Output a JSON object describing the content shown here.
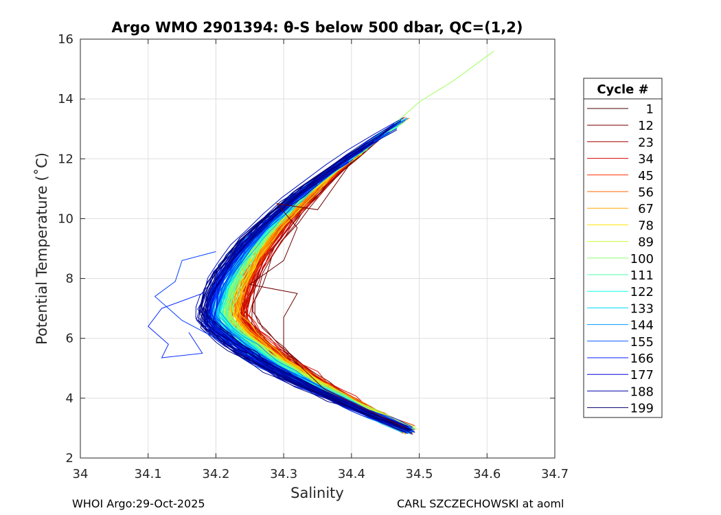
{
  "chart_data": {
    "type": "line",
    "title": "Argo WMO 2901394: θ-S below 500 dbar,  QC=(1,2)",
    "xlabel": "Salinity",
    "ylabel": "Potential Temperature (˚C)",
    "xlim": [
      34.0,
      34.7
    ],
    "ylim": [
      2,
      16
    ],
    "xticks": [
      "34",
      "34.1",
      "34.2",
      "34.3",
      "34.4",
      "34.5",
      "34.6",
      "34.7"
    ],
    "yticks": [
      "2",
      "4",
      "6",
      "8",
      "10",
      "12",
      "14",
      "16"
    ],
    "grid": true,
    "legend": {
      "title": "Cycle #",
      "position": "right-outside",
      "entries": [
        "1",
        "12",
        "23",
        "34",
        "45",
        "56",
        "67",
        "78",
        "89",
        "100",
        "111",
        "122",
        "133",
        "144",
        "155",
        "166",
        "177",
        "188",
        "199"
      ],
      "colors": [
        "#4d0000",
        "#7a0000",
        "#a80000",
        "#d40000",
        "#ff2a00",
        "#ff6a00",
        "#ffa800",
        "#ffe600",
        "#c8ff33",
        "#8cff70",
        "#4dffad",
        "#12ffea",
        "#00d4ff",
        "#0098ff",
        "#005aff",
        "#001eff",
        "#0000e0",
        "#0000a8",
        "#00006e"
      ]
    },
    "series_template": {
      "note": "Each cycle traces a θ-S curve: deep point near S=34.49, θ=2.85; salinity minimum near S≈34.17–34.27 at θ≈6.5–7; upper point near S≈34.45, θ≈13.",
      "deep": [
        34.49,
        2.85
      ],
      "mid_low": [
        34.36,
        4.0
      ],
      "mid": [
        34.26,
        5.3
      ],
      "min": [
        34.2,
        6.8
      ],
      "upper_mid": [
        34.28,
        9.8
      ],
      "upper": [
        34.45,
        13.2
      ]
    },
    "annotations": {
      "extreme_upper_point": [
        34.61,
        15.6
      ],
      "anomalous_low_salinity_point": [
        34.1,
        6.4
      ]
    }
  },
  "footer": {
    "left": "WHOI Argo:29-Oct-2025",
    "right": "CARL SZCZECHOWSKI at aoml"
  }
}
